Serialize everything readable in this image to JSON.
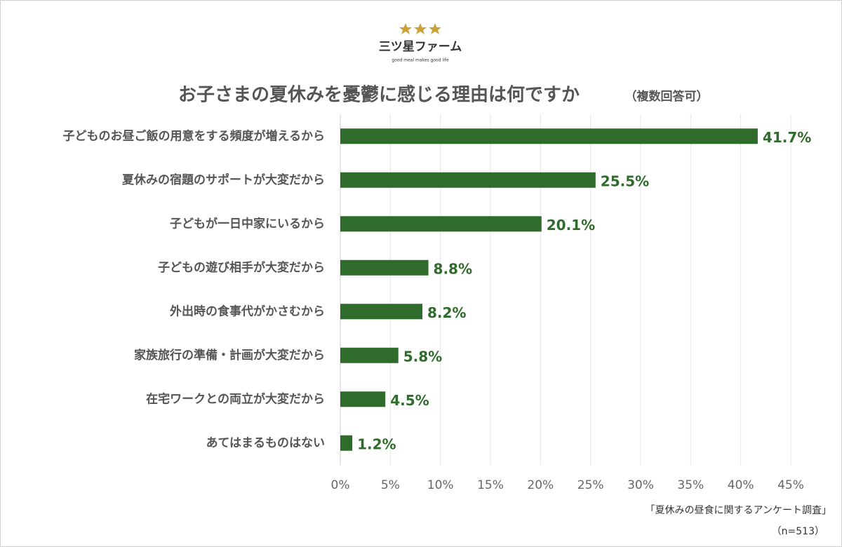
{
  "logo": {
    "name": "三ツ星ファーム",
    "tagline": "good meal makes good life"
  },
  "chart_data": {
    "type": "hbar",
    "title": "お子さまの夏休みを憂鬱に感じる理由は何ですか",
    "subtitle": "（複数回答可）",
    "categories": [
      "子どものお昼ご飯の用意をする頻度が増えるから",
      "夏休みの宿題のサポートが大変だから",
      "子どもが一日中家にいるから",
      "子どもの遊び相手が大変だから",
      "外出時の食事代がかさむから",
      "家族旅行の準備・計画が大変だから",
      "在宅ワークとの両立が大変だから",
      "あてはまるものはない"
    ],
    "values": [
      41.7,
      25.5,
      20.1,
      8.8,
      8.2,
      5.8,
      4.5,
      1.2
    ],
    "value_labels": [
      "41.7%",
      "25.5%",
      "20.1%",
      "8.8%",
      "8.2%",
      "5.8%",
      "4.5%",
      "1.2%"
    ],
    "color": "#2f6b2b",
    "xlim": [
      0,
      45
    ],
    "xticks": [
      {
        "value": 0,
        "label": "0%"
      },
      {
        "value": 5,
        "label": "5%"
      },
      {
        "value": 10,
        "label": "10%"
      },
      {
        "value": 15,
        "label": "15%"
      },
      {
        "value": 20,
        "label": "20%"
      },
      {
        "value": 25,
        "label": "25%"
      },
      {
        "value": 30,
        "label": "30%"
      },
      {
        "value": 35,
        "label": "35%"
      },
      {
        "value": 40,
        "label": "40%"
      },
      {
        "value": 45,
        "label": "45%"
      }
    ],
    "grid": true
  },
  "source": {
    "survey": "「夏休みの昼食に関するアンケート調査」",
    "sample": "（n=513）"
  }
}
